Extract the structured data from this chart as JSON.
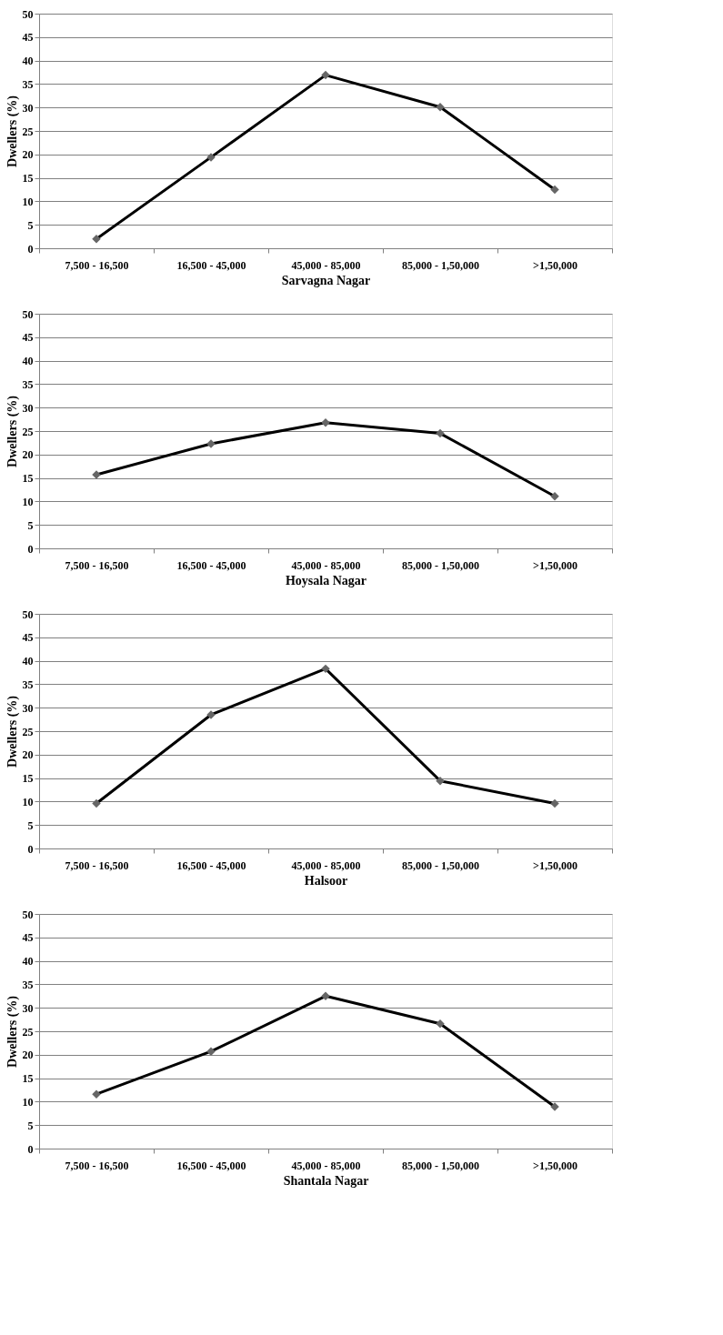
{
  "chart_data": [
    {
      "type": "line",
      "categories": [
        "7,500 - 16,500",
        "16,500 - 45,000",
        "45,000 - 85,000",
        "85,000 - 1,50,000",
        ">1,50,000"
      ],
      "xlabel": "Sarvagna Nagar",
      "ylabel": "Dwellers (%)",
      "ylim": [
        0,
        50
      ],
      "yticks": [
        0,
        5,
        10,
        15,
        20,
        25,
        30,
        35,
        40,
        45,
        50
      ],
      "grid": "y",
      "marker": "diamond",
      "line_style": "solid",
      "series": [
        {
          "color": "#000000",
          "values": [
            2.0,
            19.4,
            36.9,
            30.1,
            12.5
          ]
        }
      ]
    },
    {
      "type": "line",
      "categories": [
        "7,500 - 16,500",
        "16,500 - 45,000",
        "45,000 - 85,000",
        "85,000 - 1,50,000",
        ">1,50,000"
      ],
      "xlabel": "Hoysala Nagar",
      "ylabel": "Dwellers (%)",
      "ylim": [
        0,
        50
      ],
      "yticks": [
        0,
        5,
        10,
        15,
        20,
        25,
        30,
        35,
        40,
        45,
        50
      ],
      "grid": "y",
      "marker": "diamond",
      "line_style": "solid",
      "series": [
        {
          "color": "#000000",
          "values": [
            15.7,
            22.3,
            26.8,
            24.5,
            11.1
          ]
        }
      ]
    },
    {
      "type": "line",
      "categories": [
        "7,500 - 16,500",
        "16,500 - 45,000",
        "45,000 - 85,000",
        "85,000 - 1,50,000",
        ">1,50,000"
      ],
      "xlabel": "Halsoor",
      "ylabel": "Dwellers (%)",
      "ylim": [
        0,
        50
      ],
      "yticks": [
        0,
        5,
        10,
        15,
        20,
        25,
        30,
        35,
        40,
        45,
        50
      ],
      "grid": "y",
      "marker": "diamond",
      "line_style": "solid",
      "series": [
        {
          "color": "#000000",
          "values": [
            9.6,
            28.5,
            38.3,
            14.4,
            9.6
          ]
        }
      ]
    },
    {
      "type": "line",
      "categories": [
        "7,500 - 16,500",
        "16,500 - 45,000",
        "45,000 - 85,000",
        "85,000 - 1,50,000",
        ">1,50,000"
      ],
      "xlabel": "Shantala Nagar",
      "ylabel": "Dwellers (%)",
      "ylim": [
        0,
        50
      ],
      "yticks": [
        0,
        5,
        10,
        15,
        20,
        25,
        30,
        35,
        40,
        45,
        50
      ],
      "grid": "y",
      "marker": "diamond",
      "line_style": "solid",
      "series": [
        {
          "color": "#000000",
          "values": [
            11.6,
            20.7,
            32.5,
            26.6,
            8.9
          ]
        }
      ]
    }
  ]
}
